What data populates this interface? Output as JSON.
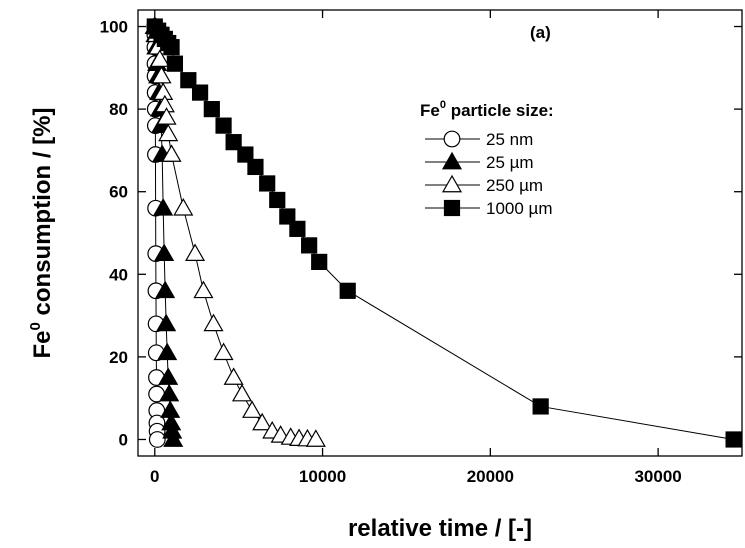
{
  "chart_data": {
    "type": "line",
    "panel_label": "(a)",
    "xlabel": "relative time / [-]",
    "ylabel_main": "Fe",
    "ylabel_sup": "0",
    "ylabel_rest": " consumption / [%]",
    "xlim": [
      -1000,
      35000
    ],
    "ylim": [
      -4,
      104
    ],
    "xticks": [
      0,
      10000,
      20000,
      30000
    ],
    "yticks": [
      0,
      20,
      40,
      60,
      80,
      100
    ],
    "xtick_labels": [
      "0",
      "10000",
      "20000",
      "30000"
    ],
    "ytick_labels": [
      "0",
      "20",
      "40",
      "60",
      "80",
      "100"
    ],
    "legend": {
      "title_main": "Fe",
      "title_sup": "0",
      "title_rest": " particle size:",
      "entries": [
        "25 nm",
        "25 µm",
        "250 µm",
        "1000 µm"
      ]
    },
    "series": [
      {
        "name": "25 nm",
        "marker": "circle-open",
        "x": [
          0,
          5,
          10,
          15,
          20,
          25,
          30,
          35,
          40,
          50,
          60,
          70,
          80,
          90,
          100,
          110,
          120,
          130,
          140,
          150
        ],
        "y": [
          100,
          98,
          95,
          91,
          88,
          84,
          80,
          76,
          69,
          56,
          45,
          36,
          28,
          21,
          15,
          11,
          7,
          4,
          2,
          0
        ]
      },
      {
        "name": "25 µm",
        "marker": "triangle-filled",
        "x": [
          0,
          40,
          90,
          140,
          200,
          260,
          320,
          380,
          440,
          500,
          560,
          620,
          680,
          740,
          800,
          860,
          920,
          980,
          1040,
          1100
        ],
        "y": [
          100,
          98,
          95,
          91,
          88,
          84,
          80,
          76,
          69,
          56,
          45,
          36,
          28,
          21,
          15,
          11,
          7,
          4,
          2,
          0
        ]
      },
      {
        "name": "250 µm",
        "marker": "triangle-open",
        "x": [
          0,
          100,
          200,
          300,
          400,
          500,
          600,
          700,
          800,
          1000,
          1700,
          2400,
          2900,
          3500,
          4100,
          4700,
          5200,
          5800,
          6400,
          7000,
          7500,
          8100,
          8600,
          9100,
          9600
        ],
        "y": [
          100,
          98,
          95,
          92,
          88,
          84,
          81,
          78,
          74,
          69,
          56,
          45,
          36,
          28,
          21,
          15,
          11,
          7,
          4,
          2,
          1,
          0.5,
          0.2,
          0.1,
          0
        ]
      },
      {
        "name": "1000 µm",
        "marker": "square-filled",
        "x": [
          0,
          200,
          400,
          600,
          800,
          1000,
          1200,
          2000,
          2700,
          3400,
          4100,
          4700,
          5400,
          6000,
          6700,
          7300,
          7900,
          8500,
          9200,
          9800,
          11500,
          23000,
          34500
        ],
        "y": [
          100,
          99,
          98,
          97,
          96,
          95,
          91,
          87,
          84,
          80,
          76,
          72,
          69,
          66,
          62,
          58,
          54,
          51,
          47,
          43,
          36,
          8,
          0
        ]
      }
    ]
  }
}
